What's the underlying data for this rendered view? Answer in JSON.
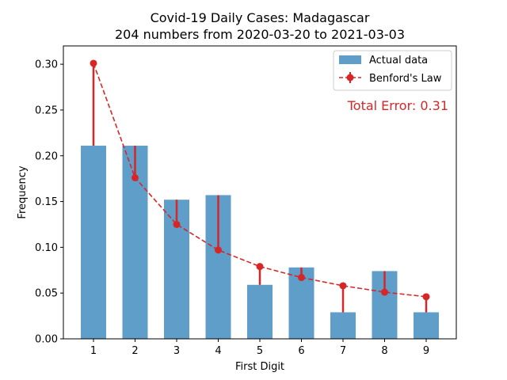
{
  "chart_data": {
    "type": "bar",
    "title": "Covid-19 Daily Cases: Madagascar",
    "subtitle": "204 numbers from 2020-03-20 to 2021-03-03",
    "xlabel": "First Digit",
    "ylabel": "Frequency",
    "categories": [
      "1",
      "2",
      "3",
      "4",
      "5",
      "6",
      "7",
      "8",
      "9"
    ],
    "ylim": [
      0,
      0.32
    ],
    "yticks": [
      "0.00",
      "0.05",
      "0.10",
      "0.15",
      "0.20",
      "0.25",
      "0.30"
    ],
    "ytick_values": [
      0,
      0.05,
      0.1,
      0.15,
      0.2,
      0.25,
      0.3
    ],
    "series": [
      {
        "name": "Actual data",
        "type": "bar",
        "color": "#5f9ec9",
        "values": [
          0.211,
          0.211,
          0.152,
          0.157,
          0.059,
          0.078,
          0.029,
          0.074,
          0.029
        ]
      },
      {
        "name": "Benford's Law",
        "type": "line",
        "color": "#d62728",
        "values": [
          0.301,
          0.176,
          0.125,
          0.097,
          0.079,
          0.067,
          0.058,
          0.051,
          0.046
        ]
      }
    ],
    "legend_position": "top-right",
    "annotation": {
      "text": "Total Error: 0.31",
      "color": "#d62728"
    }
  }
}
